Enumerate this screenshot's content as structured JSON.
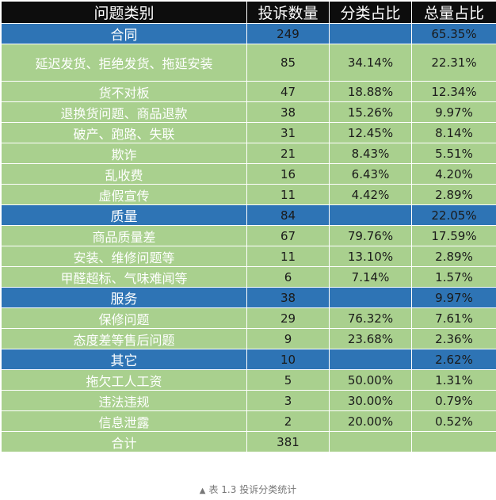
{
  "header": [
    "问题类别",
    "投诉数量",
    "分类占比",
    "总量占比"
  ],
  "rows": [
    {
      "type": "cat",
      "name": "合同",
      "count": "249",
      "share": "",
      "total": "65.35%"
    },
    {
      "type": "sub",
      "tall": true,
      "name": "延迟发货、拒绝发货、拖延安装",
      "count": "85",
      "share": "34.14%",
      "total": "22.31%"
    },
    {
      "type": "sub",
      "name": "货不对板",
      "count": "47",
      "share": "18.88%",
      "total": "12.34%"
    },
    {
      "type": "sub",
      "name": "退换货问题、商品退款",
      "count": "38",
      "share": "15.26%",
      "total": "9.97%"
    },
    {
      "type": "sub",
      "name": "破产、跑路、失联",
      "count": "31",
      "share": "12.45%",
      "total": "8.14%"
    },
    {
      "type": "sub",
      "name": "欺诈",
      "count": "21",
      "share": "8.43%",
      "total": "5.51%"
    },
    {
      "type": "sub",
      "name": "乱收费",
      "count": "16",
      "share": "6.43%",
      "total": "4.20%"
    },
    {
      "type": "sub",
      "name": "虚假宣传",
      "count": "11",
      "share": "4.42%",
      "total": "2.89%"
    },
    {
      "type": "cat",
      "name": "质量",
      "count": "84",
      "share": "",
      "total": "22.05%"
    },
    {
      "type": "sub",
      "name": "商品质量差",
      "count": "67",
      "share": "79.76%",
      "total": "17.59%"
    },
    {
      "type": "sub",
      "name": "安装、维修问题等",
      "count": "11",
      "share": "13.10%",
      "total": "2.89%"
    },
    {
      "type": "sub",
      "name": "甲醛超标、气味难闻等",
      "count": "6",
      "share": "7.14%",
      "total": "1.57%"
    },
    {
      "type": "cat",
      "name": "服务",
      "count": "38",
      "share": "",
      "total": "9.97%"
    },
    {
      "type": "sub",
      "name": "保修问题",
      "count": "29",
      "share": "76.32%",
      "total": "7.61%"
    },
    {
      "type": "sub",
      "name": "态度差等售后问题",
      "count": "9",
      "share": "23.68%",
      "total": "2.36%"
    },
    {
      "type": "cat",
      "name": "其它",
      "count": "10",
      "share": "",
      "total": "2.62%"
    },
    {
      "type": "sub",
      "name": "拖欠工人工资",
      "count": "5",
      "share": "50.00%",
      "total": "1.31%"
    },
    {
      "type": "sub",
      "name": "违法违规",
      "count": "3",
      "share": "30.00%",
      "total": "0.79%"
    },
    {
      "type": "sub",
      "name": "信息泄露",
      "count": "2",
      "share": "20.00%",
      "total": "0.52%"
    },
    {
      "type": "sub",
      "name": "合计",
      "count": "381",
      "share": "",
      "total": ""
    }
  ],
  "caption": {
    "marker": "▲",
    "text": "表 1.3  投诉分类统计"
  },
  "colors": {
    "header_bg": "#0d0d0d",
    "category_bg": "#2e74b5",
    "sub_bg": "#a9d08e"
  }
}
